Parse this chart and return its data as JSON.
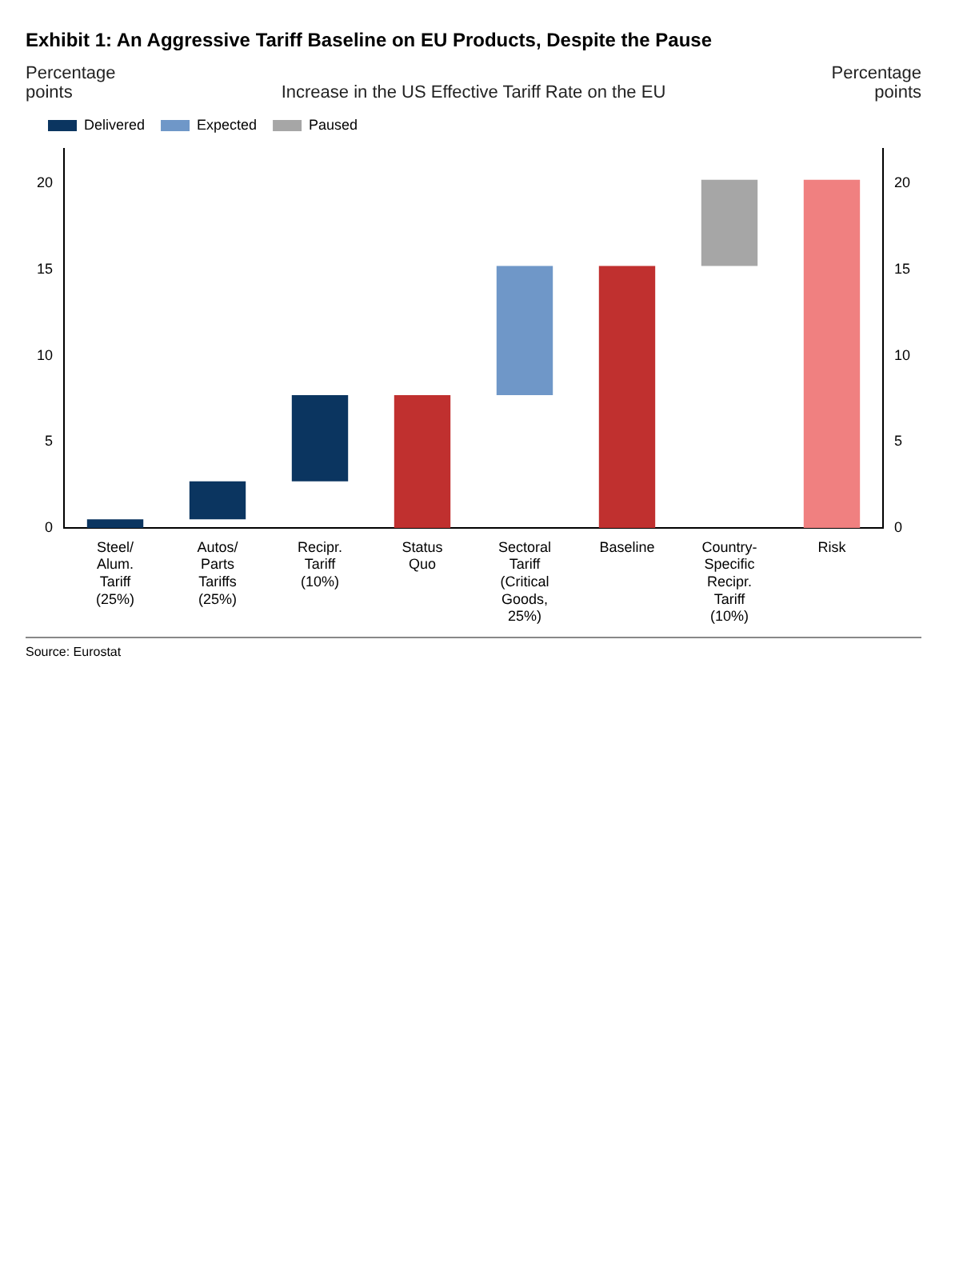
{
  "chart_data": {
    "type": "bar",
    "title": "Exhibit 1: An Aggressive Tariff Baseline on EU Products, Despite the Pause",
    "subtitle": "Increase in the US Effective Tariff Rate on the EU",
    "ylabel": "Percentage points",
    "y2label": "Percentage points",
    "categories": [
      "Steel/ Alum. Tariff (25%)",
      "Autos/ Parts Tariffs (25%)",
      "Recipr. Tariff (10%)",
      "Status Quo",
      "Sectoral Tariff (Critical Goods, 25%)",
      "Baseline",
      "Country- Specific Recipr. Tariff (10%)",
      "Risk"
    ],
    "series": [
      {
        "name": "Delivered",
        "color": "#0b3560",
        "base": [
          0,
          0.5,
          2.7,
          null,
          null,
          null,
          null,
          null
        ],
        "values": [
          0.5,
          2.2,
          5,
          null,
          null,
          null,
          null,
          null
        ]
      },
      {
        "name": "Expected",
        "color": "#6f97c8",
        "base": [
          null,
          null,
          null,
          null,
          7.7,
          null,
          null,
          null
        ],
        "values": [
          null,
          null,
          null,
          null,
          7.5,
          null,
          null,
          null
        ]
      },
      {
        "name": "Paused",
        "color": "#a6a6a6",
        "base": [
          null,
          null,
          null,
          null,
          null,
          null,
          15.2,
          null
        ],
        "values": [
          null,
          null,
          null,
          null,
          null,
          null,
          5,
          null
        ]
      },
      {
        "colors": [
          null,
          null,
          null,
          "#c0302f",
          null,
          "#c0302f",
          null,
          "#f08080"
        ],
        "values": [
          null,
          null,
          null,
          7.7,
          null,
          15.2,
          null,
          20.2
        ]
      }
    ],
    "ylim": [
      0,
      22
    ],
    "yticks": [
      0,
      5,
      10,
      15,
      20
    ],
    "y2lim": [
      0,
      22
    ],
    "y2ticks": [
      0,
      5,
      10,
      15,
      20
    ],
    "legend": "top left",
    "grid": false,
    "annotations": [
      "Source: Eurostat"
    ]
  }
}
